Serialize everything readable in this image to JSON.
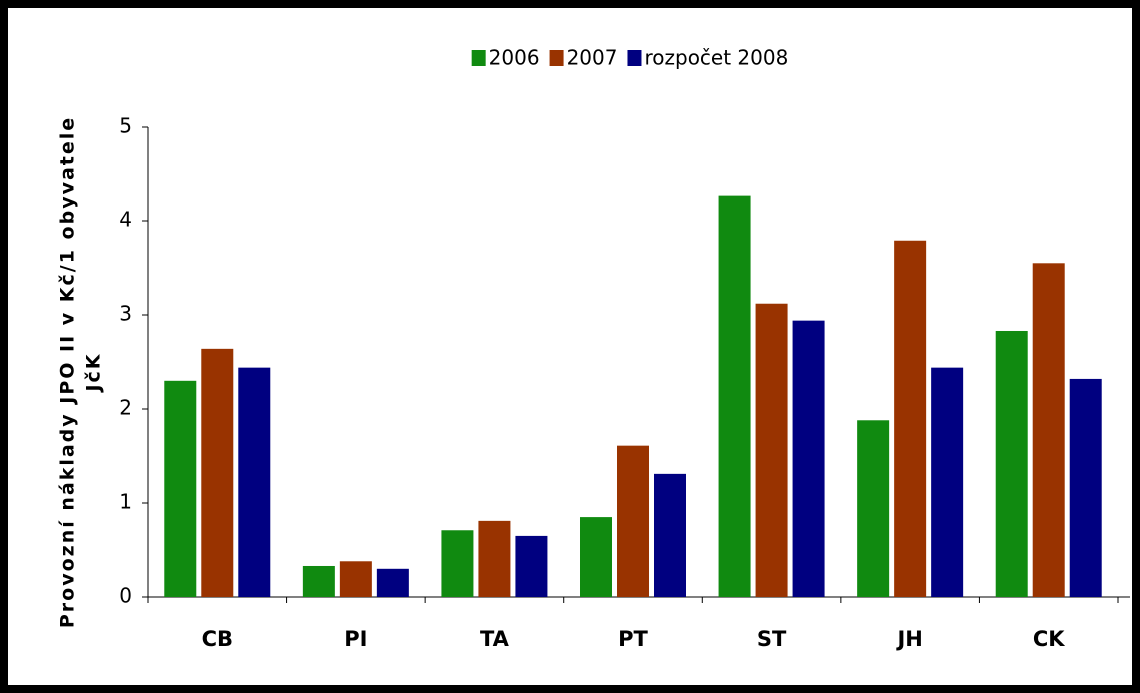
{
  "chart_data": {
    "type": "bar",
    "y_label": [
      "Provozní náklady JPO II v Kč/1 obyvatele",
      "JčK"
    ],
    "categories": [
      "CB",
      "PI",
      "TA",
      "PT",
      "ST",
      "JH",
      "CK"
    ],
    "series": [
      {
        "name": "2006",
        "color": "#108a10",
        "values": [
          2.3,
          0.33,
          0.71,
          0.85,
          4.27,
          1.88,
          2.83
        ]
      },
      {
        "name": "2007",
        "color": "#993300",
        "values": [
          2.64,
          0.38,
          0.81,
          1.61,
          3.12,
          3.79,
          3.55
        ]
      },
      {
        "name": "rozpočet 2008",
        "color": "#000080",
        "values": [
          2.44,
          0.3,
          0.65,
          1.31,
          2.94,
          2.44,
          2.32
        ]
      }
    ],
    "ylim": [
      0,
      5
    ],
    "yticks": [
      0,
      1,
      2,
      3,
      4,
      5
    ],
    "grid": false,
    "legend": "top"
  }
}
